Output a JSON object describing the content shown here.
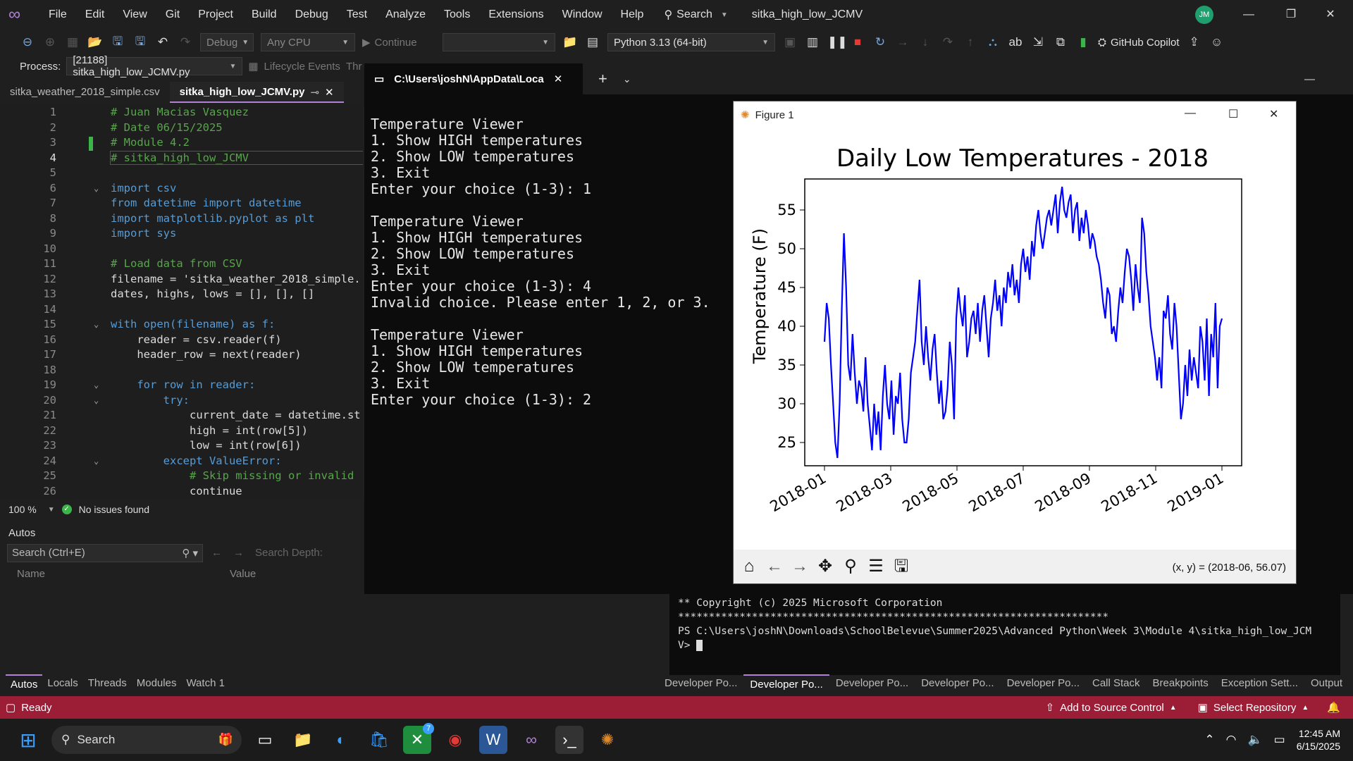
{
  "menubar": {
    "items": [
      "File",
      "Edit",
      "View",
      "Git",
      "Project",
      "Build",
      "Debug",
      "Test",
      "Analyze",
      "Tools",
      "Extensions",
      "Window",
      "Help"
    ],
    "search_label": "Search",
    "window_title": "sitka_high_low_JCMV",
    "avatar_initials": "JM"
  },
  "toolbar": {
    "config": "Debug",
    "platform": "Any CPU",
    "continue_label": "Continue",
    "python_env": "Python 3.13 (64-bit)",
    "copilot_label": "GitHub Copilot"
  },
  "procbar": {
    "label": "Process:",
    "process": "[21188] sitka_high_low_JCMV.py",
    "lifecycle": "Lifecycle Events",
    "thread": "Thr"
  },
  "editor": {
    "tabs": [
      {
        "label": "sitka_weather_2018_simple.csv"
      },
      {
        "label": "sitka_high_low_JCMV.py"
      }
    ],
    "zoom": "100 %",
    "issues": "No issues found"
  },
  "autos": {
    "title": "Autos",
    "search_placeholder": "Search (Ctrl+E)",
    "search_depth_label": "Search Depth:",
    "col_name": "Name",
    "col_value": "Value"
  },
  "terminal": {
    "tab_title": "C:\\Users\\joshN\\AppData\\Loca",
    "text": "Temperature Viewer\n1. Show HIGH temperatures\n2. Show LOW temperatures\n3. Exit\nEnter your choice (1-3): 1\n\nTemperature Viewer\n1. Show HIGH temperatures\n2. Show LOW temperatures\n3. Exit\nEnter your choice (1-3): 4\nInvalid choice. Please enter 1, 2, or 3.\n\nTemperature Viewer\n1. Show HIGH temperatures\n2. Show LOW temperatures\n3. Exit\nEnter your choice (1-3): 2"
  },
  "figure": {
    "window_title": "Figure 1",
    "coords_text": "(x, y) = (2018-06, 56.07)"
  },
  "chart_data": {
    "type": "line",
    "title": "Daily Low Temperatures - 2018",
    "xlabel": "",
    "ylabel": "Temperature (F)",
    "x_tick_labels": [
      "2018-01",
      "2018-03",
      "2018-05",
      "2018-07",
      "2018-09",
      "2018-11",
      "2019-01"
    ],
    "y_ticks": [
      25,
      30,
      35,
      40,
      45,
      50,
      55
    ],
    "ylim": [
      22,
      59
    ],
    "grid": false,
    "series": [
      {
        "color": "#0000ff",
        "values": [
          38,
          43,
          41,
          35,
          30,
          25,
          23,
          30,
          42,
          52,
          45,
          35,
          33,
          39,
          34,
          30,
          33,
          32,
          29,
          36,
          30,
          27,
          24,
          30,
          26,
          29,
          24,
          31,
          35,
          30,
          28,
          33,
          26,
          31,
          30,
          34,
          28,
          25,
          25,
          28,
          34,
          36,
          38,
          42,
          46,
          38,
          35,
          40,
          36,
          33,
          37,
          39,
          34,
          30,
          33,
          28,
          29,
          32,
          38,
          35,
          28,
          41,
          45,
          42,
          40,
          44,
          36,
          38,
          41,
          42,
          39,
          43,
          38,
          42,
          44,
          40,
          36,
          41,
          43,
          46,
          42,
          44,
          40,
          45,
          43,
          47,
          45,
          48,
          44,
          46,
          43,
          48,
          50,
          47,
          49,
          46,
          51,
          49,
          53,
          55,
          52,
          50,
          52,
          54,
          55,
          53,
          55,
          57,
          52,
          56,
          58,
          55,
          54,
          56,
          57,
          52,
          55,
          56,
          51,
          54,
          52,
          55,
          53,
          50,
          52,
          51,
          49,
          48,
          46,
          43,
          41,
          45,
          44,
          39,
          40,
          38,
          42,
          45,
          43,
          47,
          50,
          49,
          46,
          42,
          48,
          45,
          43,
          54,
          52,
          47,
          44,
          40,
          38,
          36,
          33,
          36,
          32,
          42,
          41,
          44,
          39,
          37,
          43,
          40,
          34,
          28,
          30,
          35,
          31,
          37,
          33,
          36,
          34,
          32,
          40,
          38,
          33,
          41,
          31,
          39,
          36,
          43,
          32,
          40,
          41
        ],
        "note_days_span": "2018-01-01 to 2018-12-31"
      }
    ]
  },
  "psterm": {
    "lines": [
      "** Copyright (c) 2025 Microsoft Corporation",
      "**********************************************************************",
      "PS C:\\Users\\joshN\\Downloads\\SchoolBelevue\\Summer2025\\Advanced Python\\Week 3\\Module 4\\sitka_high_low_JCM",
      "V> "
    ]
  },
  "debug_tabs_left": [
    "Autos",
    "Locals",
    "Threads",
    "Modules",
    "Watch 1"
  ],
  "debug_tabs_right": [
    "Developer Po...",
    "Developer Po...",
    "Developer Po...",
    "Developer Po...",
    "Developer Po...",
    "Call Stack",
    "Breakpoints",
    "Exception Sett...",
    "Output"
  ],
  "statusbar": {
    "ready": "Ready",
    "add_source": "Add to Source Control",
    "select_repo": "Select Repository"
  },
  "taskbar": {
    "search": "Search",
    "time": "12:45 AM",
    "date": "6/15/2025",
    "badge": "7"
  },
  "colors": {
    "accent": "#b180d7",
    "status": "#9b1d36",
    "plot_line": "#0000ff"
  }
}
